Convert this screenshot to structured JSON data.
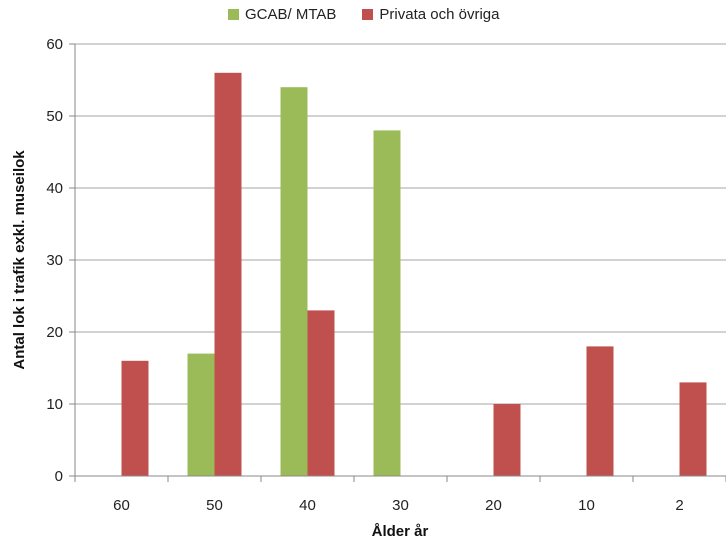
{
  "chart_data": {
    "type": "bar",
    "title": "",
    "xlabel": "Ålder år",
    "ylabel": "Antal lok i trafik exkl. museilok",
    "categories": [
      "60",
      "50",
      "40",
      "30",
      "20",
      "10",
      "2"
    ],
    "series": [
      {
        "name": "GCAB/ MTAB",
        "color": "#9bbb59",
        "values": [
          0,
          17,
          54,
          48,
          0,
          0,
          0
        ]
      },
      {
        "name": "Privata och övriga",
        "color": "#c0504d",
        "values": [
          16,
          56,
          23,
          0,
          10,
          18,
          13
        ]
      }
    ],
    "ylim": [
      0,
      60
    ],
    "yticks": [
      0,
      10,
      20,
      30,
      40,
      50,
      60
    ],
    "grid": true,
    "legend_position": "top"
  }
}
